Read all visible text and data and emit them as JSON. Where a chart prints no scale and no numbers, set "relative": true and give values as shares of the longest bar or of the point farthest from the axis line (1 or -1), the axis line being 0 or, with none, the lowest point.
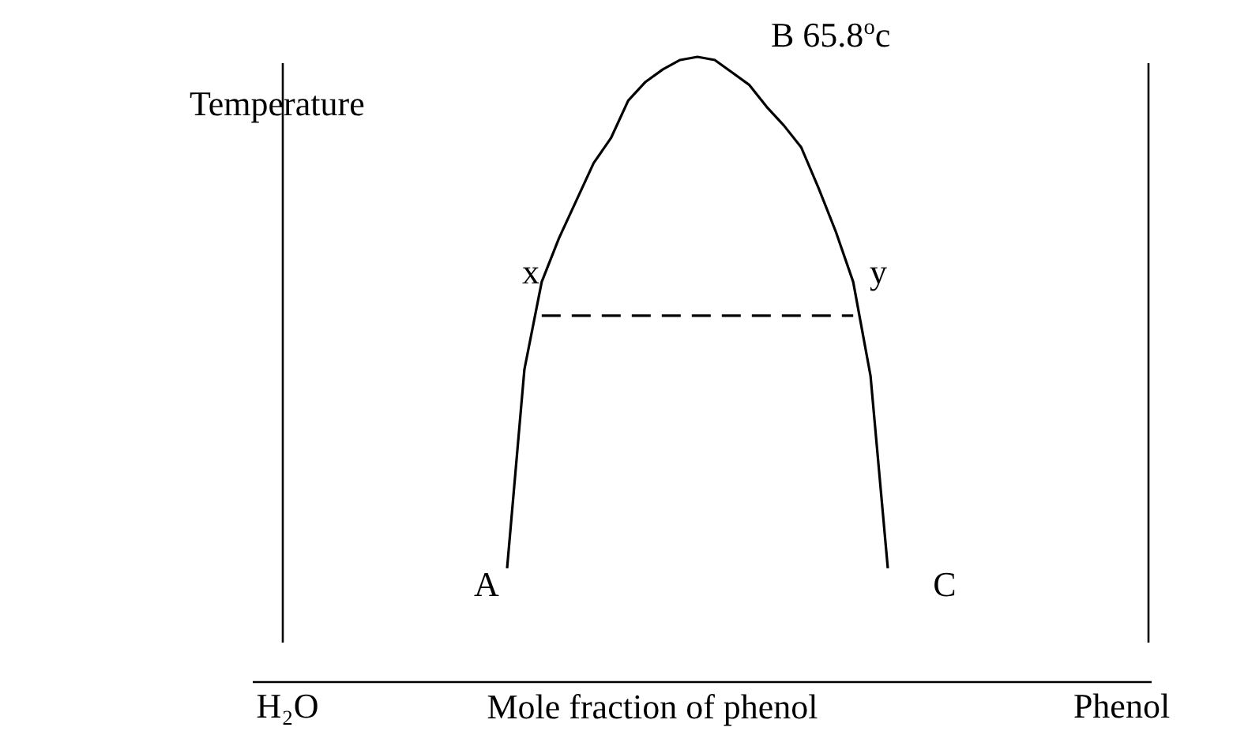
{
  "chart_data": {
    "type": "line",
    "relative": true,
    "xlabel": "Mole fraction of phenol",
    "ylabel": "Temperature",
    "categories": [
      null,
      null,
      null,
      null,
      null,
      null,
      null,
      null,
      null,
      null,
      null,
      null,
      null,
      null,
      null,
      null,
      null,
      null,
      null,
      null,
      null,
      null,
      null
    ],
    "series": [
      {
        "color": "#000000",
        "line_style": "solid",
        "values": [
          0.182,
          0.5,
          0.64,
          0.71,
          0.77,
          0.83,
          0.87,
          0.93,
          0.96,
          0.98,
          0.995,
          1,
          0.995,
          0.975,
          0.955,
          0.92,
          0.89,
          0.855,
          0.79,
          0.72,
          0.64,
          0.49,
          0.182
        ]
      },
      {
        "color": "#000000",
        "line_style": "dashed",
        "values": [
          null,
          null,
          0.586,
          0.586,
          0.586,
          0.586,
          0.586,
          0.586,
          0.586,
          0.586,
          0.586,
          0.586,
          0.586,
          0.586,
          0.586,
          0.586,
          0.586,
          0.586,
          0.586,
          0.586,
          0.586,
          null,
          null
        ]
      }
    ],
    "annotations": [
      "B 65.8$^{o}$c",
      "x",
      "y",
      "A",
      "C",
      "H₂O",
      "Phenol"
    ],
    "grid": false,
    "marker": "none"
  }
}
